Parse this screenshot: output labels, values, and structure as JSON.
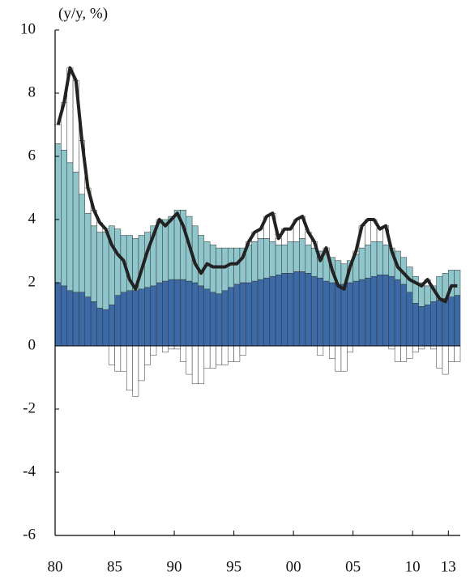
{
  "chart_data": {
    "type": "bar",
    "unit_label": "(y/y, %)",
    "x": [
      1980,
      1980.5,
      1981,
      1981.5,
      1982,
      1982.5,
      1983,
      1983.5,
      1984,
      1984.5,
      1985,
      1985.5,
      1986,
      1986.5,
      1987,
      1987.5,
      1988,
      1988.5,
      1989,
      1989.5,
      1990,
      1990.5,
      1991,
      1991.5,
      1992,
      1992.5,
      1993,
      1993.5,
      1994,
      1994.5,
      1995,
      1995.5,
      1996,
      1996.5,
      1997,
      1997.5,
      1998,
      1998.5,
      1999,
      1999.5,
      2000,
      2000.5,
      2001,
      2001.5,
      2002,
      2002.5,
      2003,
      2003.5,
      2004,
      2004.5,
      2005,
      2005.5,
      2006,
      2006.5,
      2007,
      2007.5,
      2008,
      2008.5,
      2009,
      2009.5,
      2010,
      2010.5,
      2011,
      2011.5,
      2012,
      2012.5,
      2013,
      2013.5
    ],
    "series": [
      {
        "type": "bar",
        "color": "#3b6aa6",
        "values": [
          2.0,
          1.9,
          1.75,
          1.7,
          1.7,
          1.55,
          1.4,
          1.2,
          1.15,
          1.3,
          1.6,
          1.7,
          1.75,
          1.75,
          1.8,
          1.85,
          1.9,
          2.0,
          2.05,
          2.1,
          2.1,
          2.1,
          2.05,
          2.0,
          1.9,
          1.8,
          1.7,
          1.65,
          1.75,
          1.85,
          1.95,
          2.0,
          2.0,
          2.05,
          2.1,
          2.15,
          2.2,
          2.25,
          2.3,
          2.3,
          2.35,
          2.35,
          2.3,
          2.2,
          2.15,
          2.05,
          2.0,
          1.95,
          1.95,
          2.0,
          2.05,
          2.1,
          2.15,
          2.2,
          2.25,
          2.25,
          2.2,
          2.1,
          1.95,
          1.7,
          1.35,
          1.25,
          1.3,
          1.4,
          1.45,
          1.5,
          1.55,
          1.6
        ]
      },
      {
        "type": "bar",
        "color": "#8ec6cc",
        "values": [
          4.4,
          4.3,
          4.05,
          3.8,
          3.1,
          2.65,
          2.4,
          2.4,
          2.45,
          2.5,
          2.1,
          1.8,
          1.75,
          1.65,
          1.7,
          1.75,
          1.9,
          1.9,
          1.95,
          2.0,
          2.2,
          2.2,
          2.05,
          1.8,
          1.6,
          1.5,
          1.5,
          1.45,
          1.35,
          1.25,
          1.15,
          1.1,
          1.2,
          1.25,
          1.3,
          1.25,
          1.1,
          0.95,
          0.9,
          1.0,
          0.95,
          1.05,
          0.9,
          0.9,
          0.85,
          0.85,
          0.8,
          0.75,
          0.65,
          0.7,
          0.85,
          1.0,
          1.05,
          1.1,
          1.05,
          0.95,
          0.9,
          0.9,
          0.85,
          0.8,
          0.85,
          0.75,
          0.6,
          0.5,
          0.75,
          0.8,
          0.85,
          0.8
        ]
      },
      {
        "type": "bar",
        "color": "#ffffff",
        "values": [
          0.6,
          1.5,
          3.0,
          2.9,
          1.7,
          0.8,
          0.5,
          0.3,
          0.1,
          -0.6,
          -0.8,
          -0.8,
          -1.4,
          -1.6,
          -1.1,
          -0.6,
          -0.3,
          0.1,
          -0.2,
          -0.1,
          -0.1,
          -0.5,
          -0.9,
          -1.2,
          -1.2,
          -0.7,
          -0.7,
          -0.6,
          -0.6,
          -0.5,
          -0.5,
          -0.3,
          0.1,
          0.3,
          0.3,
          0.7,
          0.9,
          0.2,
          0.5,
          0.4,
          0.7,
          0.7,
          0.4,
          0.2,
          -0.3,
          0.2,
          -0.4,
          -0.8,
          -0.8,
          -0.2,
          0.1,
          0.7,
          0.8,
          0.7,
          0.4,
          0.6,
          -0.1,
          -0.5,
          -0.5,
          -0.4,
          -0.2,
          -0.1,
          0.2,
          -0.1,
          -0.7,
          -0.9,
          -0.5,
          -0.5
        ]
      },
      {
        "type": "line",
        "color": "#222222",
        "values": [
          7.0,
          7.7,
          8.8,
          8.4,
          6.5,
          5.0,
          4.3,
          3.9,
          3.7,
          3.2,
          2.9,
          2.7,
          2.1,
          1.8,
          2.4,
          3.0,
          3.5,
          4.0,
          3.8,
          4.0,
          4.2,
          3.8,
          3.2,
          2.6,
          2.3,
          2.6,
          2.5,
          2.5,
          2.5,
          2.6,
          2.6,
          2.8,
          3.3,
          3.6,
          3.7,
          4.1,
          4.2,
          3.4,
          3.7,
          3.7,
          4.0,
          4.1,
          3.6,
          3.3,
          2.7,
          3.1,
          2.4,
          1.9,
          1.8,
          2.5,
          3.0,
          3.8,
          4.0,
          4.0,
          3.7,
          3.8,
          3.0,
          2.5,
          2.3,
          2.1,
          2.0,
          1.9,
          2.1,
          1.8,
          1.5,
          1.4,
          1.9,
          1.9
        ]
      }
    ],
    "xlim": [
      1980,
      2014
    ],
    "xticks": [
      {
        "value": 1980,
        "label": "80"
      },
      {
        "value": 1985,
        "label": "85"
      },
      {
        "value": 1990,
        "label": "90"
      },
      {
        "value": 1995,
        "label": "95"
      },
      {
        "value": 2000,
        "label": "00"
      },
      {
        "value": 2005,
        "label": "05"
      },
      {
        "value": 2010,
        "label": "10"
      },
      {
        "value": 2013,
        "label": "13"
      }
    ],
    "ylim": [
      -6,
      10
    ],
    "yticks": [
      -6,
      -4,
      -2,
      0,
      2,
      4,
      6,
      8,
      10
    ]
  }
}
